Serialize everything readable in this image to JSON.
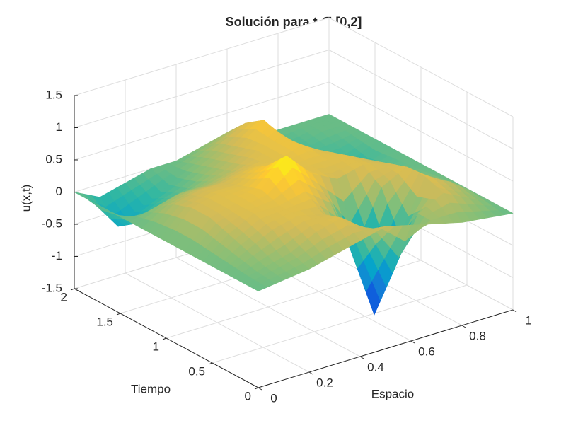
{
  "chart_data": {
    "type": "surface",
    "title": "Solución para t ∈ [0,2]",
    "xlabel": "Espacio",
    "ylabel": "Tiempo",
    "zlabel": "u(x,t)",
    "x": [
      0,
      0.1,
      0.2,
      0.3,
      0.4,
      0.5,
      0.6,
      0.7,
      0.8,
      0.9,
      1
    ],
    "y": [
      0,
      0.2,
      0.4,
      0.6,
      0.8,
      1,
      1.2,
      1.4,
      1.6,
      1.8,
      2
    ],
    "z": [
      [
        0,
        0.05,
        0.1,
        0.2,
        0.3,
        0.4,
        0.3,
        0.2,
        0.1,
        0.05,
        0
      ],
      [
        0,
        0.1,
        0.2,
        0.4,
        0.5,
        0.2,
        -0.6,
        0.2,
        0.4,
        0.2,
        0
      ],
      [
        0,
        0.2,
        0.4,
        0.5,
        0.4,
        -0.2,
        -1.4,
        -0.3,
        0.5,
        0.3,
        0
      ],
      [
        0,
        0.3,
        0.5,
        0.5,
        0.6,
        0.3,
        -0.5,
        0.3,
        0.5,
        0.2,
        0
      ],
      [
        0,
        0.4,
        0.5,
        0.6,
        1.0,
        0.6,
        0.4,
        0.5,
        0.4,
        0.1,
        0
      ],
      [
        0,
        0.4,
        0.5,
        0.5,
        0.7,
        0.5,
        0.5,
        0.5,
        0.3,
        0,
        0
      ],
      [
        0,
        0.3,
        0.4,
        0.4,
        0.5,
        0.5,
        0.6,
        0.4,
        0.1,
        -0.1,
        0
      ],
      [
        0,
        0.1,
        0.2,
        0.2,
        0.3,
        0.5,
        0.6,
        0.3,
        0,
        -0.2,
        0
      ],
      [
        0,
        -0.3,
        -0.1,
        0,
        0.2,
        0.4,
        0.7,
        0.2,
        -0.1,
        -0.1,
        0
      ],
      [
        0,
        -0.5,
        -0.3,
        -0.1,
        0.1,
        0.3,
        0.5,
        0.1,
        -0.1,
        0,
        0
      ],
      [
        0,
        -0.2,
        -0.1,
        0,
        0,
        0.1,
        0.2,
        0,
        0,
        0,
        0
      ]
    ],
    "xlim": [
      0,
      1
    ],
    "ylim": [
      0,
      2
    ],
    "zlim": [
      -1.5,
      1.5
    ],
    "xticks": [
      0,
      0.2,
      0.4,
      0.6,
      0.8,
      1
    ],
    "yticks": [
      0,
      0.5,
      1,
      1.5,
      2
    ],
    "zticks": [
      -1.5,
      -1,
      -0.5,
      0,
      0.5,
      1,
      1.5
    ],
    "grid": true,
    "colormap": [
      "#352a87",
      "#0f5cdd",
      "#1481d6",
      "#06a4ca",
      "#2eb7a4",
      "#87bf77",
      "#d1bb59",
      "#fec832",
      "#f9fb0e"
    ]
  }
}
